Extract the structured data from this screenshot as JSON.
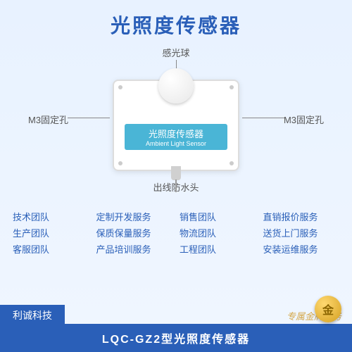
{
  "title": "光照度传感器",
  "title_color": "#2a5fb8",
  "annotations": {
    "top": "感光球",
    "left": "M3固定孔",
    "right": "M3固定孔",
    "bottom": "出线防水头"
  },
  "device": {
    "label_cn": "光照度传感器",
    "label_en": "Ambient Light Sensor",
    "band_color": "#4ab5d6"
  },
  "features": [
    {
      "team": "技术团队",
      "service": "定制开发服务"
    },
    {
      "team": "销售团队",
      "service": "直销报价服务"
    },
    {
      "team": "生产团队",
      "service": "保质保量服务"
    },
    {
      "team": "物流团队",
      "service": "送货上门服务"
    },
    {
      "team": "客服团队",
      "service": "产品培训服务"
    },
    {
      "team": "工程团队",
      "service": "安装运维服务"
    }
  ],
  "feature_color": "#2a5fb8",
  "brand": "利诚科技",
  "gold_service": "专属金牌服务",
  "badge": "金",
  "model": "LQC-GZ2型光照度传感器",
  "bar_color": "#2a5fb8"
}
